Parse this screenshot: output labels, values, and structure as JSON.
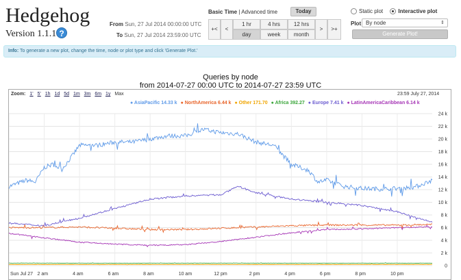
{
  "app": {
    "title": "Hedgehog",
    "version": "Version 1.1.1",
    "help_icon": "?"
  },
  "time_range": {
    "from_label": "From",
    "from_value": "Sun, 27 Jul 2014 00:00:00 UTC",
    "to_label": "To",
    "to_value": "Sun, 27 Jul 2014 23:59:00 UTC"
  },
  "time_controls": {
    "basic_label": "Basic Time",
    "separator": " | ",
    "advanced_label": "Advanced time",
    "today": "Today",
    "nav": [
      "+<",
      "<",
      ">",
      ">+"
    ],
    "top_row": [
      "1 hr",
      "4 hrs",
      "12 hrs"
    ],
    "bottom_row": [
      "day",
      "week",
      "month"
    ],
    "active": "day"
  },
  "plot_controls": {
    "static_label": "Static plot",
    "interactive_label": "Interactive plot",
    "selected": "interactive",
    "plot_label": "Plot",
    "plot_value": "By node",
    "generate": "Generate Plot!"
  },
  "info": {
    "prefix": "Info:",
    "message": " To generate a new plot, change the time, node or plot type and click 'Generate Plot.'"
  },
  "chart_data": {
    "type": "line",
    "title": "Queries by node",
    "subtitle": "from 2014-07-27 00:00 UTC to 2014-07-27 23:59 UTC",
    "timestamp": "23:59 July 27, 2014",
    "zoom_label": "Zoom:",
    "zoom_options": [
      "1'",
      "5'",
      "1h",
      "1d",
      "5d",
      "1m",
      "3m",
      "6m",
      "1y"
    ],
    "zoom_max": "Max",
    "x_tick_labels": [
      "Sun Jul 27",
      "2 am",
      "4 am",
      "6 am",
      "8 am",
      "10 am",
      "12 pm",
      "2 pm",
      "4 pm",
      "6 pm",
      "8 pm",
      "10 pm"
    ],
    "x_range_hours": [
      0,
      23.98
    ],
    "y_tick_labels": [
      "0",
      "2 k",
      "4 k",
      "6 k",
      "8 k",
      "10 k",
      "12 k",
      "14 k",
      "16 k",
      "18 k",
      "20 k",
      "22 k",
      "24 k"
    ],
    "ylim": [
      0,
      24000
    ],
    "grid": true,
    "legend_position": "top-right",
    "series": [
      {
        "name": "AsiaPacific",
        "legend_value": "14.33 k",
        "color": "#5e9ae8",
        "x": [
          0,
          0.5,
          1,
          1.5,
          2,
          2.5,
          3,
          3.5,
          4,
          5,
          6,
          7,
          8,
          9,
          10,
          11,
          12,
          13,
          14,
          15,
          16,
          17,
          17.5,
          18,
          19,
          20,
          21,
          22,
          23,
          24
        ],
        "y": [
          12500,
          13000,
          13500,
          13200,
          15500,
          16000,
          15200,
          17000,
          19000,
          19000,
          19500,
          19500,
          20000,
          20500,
          20500,
          21500,
          21000,
          20800,
          19500,
          19000,
          16000,
          15000,
          13200,
          13500,
          12500,
          12200,
          12100,
          12200,
          12400,
          13500
        ]
      },
      {
        "name": "NorthAmerica",
        "legend_value": "6.44 k",
        "color": "#e8642a",
        "x": [
          0,
          2,
          4,
          6,
          8,
          10,
          12,
          14,
          16,
          18,
          20,
          22,
          24
        ],
        "y": [
          6000,
          6000,
          6100,
          5900,
          5700,
          5700,
          5900,
          6100,
          6300,
          6400,
          6400,
          6400,
          6500
        ]
      },
      {
        "name": "Other",
        "legend_value": "171.70",
        "color": "#f0a500",
        "x": [
          0,
          6,
          12,
          18,
          24
        ],
        "y": [
          172,
          170,
          172,
          171,
          172
        ]
      },
      {
        "name": "Africa",
        "legend_value": "392.27",
        "color": "#3aa53a",
        "x": [
          0,
          6,
          12,
          18,
          24
        ],
        "y": [
          400,
          390,
          395,
          390,
          392
        ]
      },
      {
        "name": "Europe",
        "legend_value": "7.41 k",
        "color": "#6b5bd0",
        "x": [
          0,
          2,
          4,
          6,
          8,
          10,
          12,
          13,
          14,
          16,
          18,
          20,
          22,
          24
        ],
        "y": [
          6700,
          6300,
          7500,
          9000,
          10500,
          11000,
          11200,
          12500,
          11500,
          10500,
          10000,
          9500,
          8500,
          6800
        ]
      },
      {
        "name": "LatinAmericaCaribbean",
        "legend_value": "6.14 k",
        "color": "#a534b5",
        "x": [
          0,
          2,
          4,
          6,
          8,
          10,
          12,
          14,
          16,
          18,
          20,
          22,
          24
        ],
        "y": [
          5100,
          4400,
          3700,
          3400,
          3200,
          3300,
          3800,
          4500,
          5200,
          5700,
          5800,
          6000,
          6100
        ]
      }
    ]
  }
}
